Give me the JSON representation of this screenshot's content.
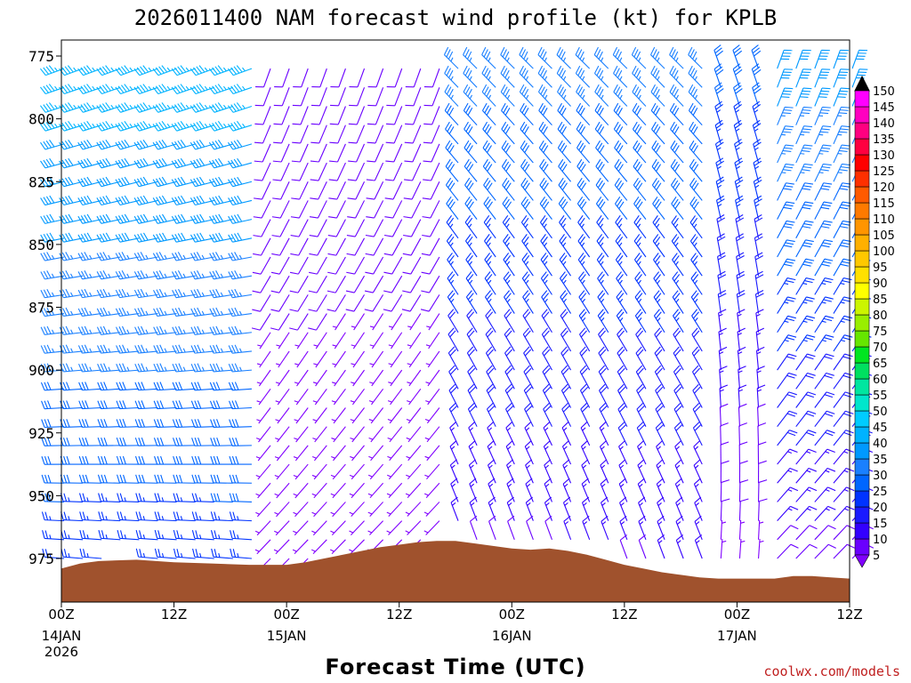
{
  "chart_data": {
    "type": "wind-barb-profile",
    "title": "2026011400 NAM forecast wind profile (kt) for KPLB",
    "xlabel": "Forecast Time (UTC)",
    "ylabel": "",
    "credit": "coolwx.com/models",
    "units": "kt",
    "x_ticks": [
      {
        "hour": 0,
        "label": "00Z",
        "date": "14JAN",
        "year": "2026"
      },
      {
        "hour": 12,
        "label": "12Z",
        "date": "",
        "year": ""
      },
      {
        "hour": 24,
        "label": "00Z",
        "date": "15JAN",
        "year": ""
      },
      {
        "hour": 36,
        "label": "12Z",
        "date": "",
        "year": ""
      },
      {
        "hour": 48,
        "label": "00Z",
        "date": "16JAN",
        "year": ""
      },
      {
        "hour": 60,
        "label": "12Z",
        "date": "",
        "year": ""
      },
      {
        "hour": 72,
        "label": "00Z",
        "date": "17JAN",
        "year": ""
      },
      {
        "hour": 84,
        "label": "12Z",
        "date": "",
        "year": ""
      }
    ],
    "xlim": [
      0,
      84
    ],
    "y_ticks": [
      775,
      800,
      825,
      850,
      875,
      900,
      925,
      950,
      975
    ],
    "ylim_hPa": [
      768,
      984
    ],
    "surface_pressure_hPa": [
      {
        "hour": 0,
        "p": 979
      },
      {
        "hour": 2,
        "p": 977
      },
      {
        "hour": 4,
        "p": 976
      },
      {
        "hour": 8,
        "p": 975.5
      },
      {
        "hour": 12,
        "p": 976.5
      },
      {
        "hour": 16,
        "p": 977
      },
      {
        "hour": 20,
        "p": 977.5
      },
      {
        "hour": 24,
        "p": 977.5
      },
      {
        "hour": 26,
        "p": 976.5
      },
      {
        "hour": 28,
        "p": 975
      },
      {
        "hour": 30,
        "p": 973.5
      },
      {
        "hour": 32,
        "p": 972
      },
      {
        "hour": 34,
        "p": 970.5
      },
      {
        "hour": 36,
        "p": 969.5
      },
      {
        "hour": 38,
        "p": 968.5
      },
      {
        "hour": 40,
        "p": 968
      },
      {
        "hour": 42,
        "p": 968
      },
      {
        "hour": 44,
        "p": 969
      },
      {
        "hour": 46,
        "p": 970
      },
      {
        "hour": 48,
        "p": 971
      },
      {
        "hour": 50,
        "p": 971.5
      },
      {
        "hour": 52,
        "p": 971
      },
      {
        "hour": 54,
        "p": 972
      },
      {
        "hour": 56,
        "p": 973.5
      },
      {
        "hour": 58,
        "p": 975.5
      },
      {
        "hour": 60,
        "p": 977.5
      },
      {
        "hour": 62,
        "p": 979
      },
      {
        "hour": 64,
        "p": 980.5
      },
      {
        "hour": 66,
        "p": 981.5
      },
      {
        "hour": 68,
        "p": 982.5
      },
      {
        "hour": 70,
        "p": 983
      },
      {
        "hour": 72,
        "p": 983
      },
      {
        "hour": 76,
        "p": 983
      },
      {
        "hour": 78,
        "p": 982
      },
      {
        "hour": 80,
        "p": 982
      },
      {
        "hour": 82,
        "p": 982.5
      },
      {
        "hour": 84,
        "p": 983
      }
    ],
    "wind_regimes": [
      {
        "hours": [
          0,
          20
        ],
        "speed_upper_kt": 45,
        "speed_lower_kt": 25,
        "from_dir_deg": 250
      },
      {
        "hours": [
          22,
          40
        ],
        "speed_upper_kt": 10,
        "speed_lower_kt": 5,
        "from_dir_deg": 200
      },
      {
        "hours": [
          40,
          68
        ],
        "speed_upper_kt": 35,
        "speed_lower_kt": 12,
        "from_dir_deg": 315
      },
      {
        "hours": [
          68,
          74
        ],
        "speed_upper_kt": 30,
        "speed_lower_kt": 5,
        "from_dir_deg": 340
      },
      {
        "hours": [
          74,
          84
        ],
        "speed_upper_kt": 40,
        "speed_lower_kt": 10,
        "from_dir_deg": 20
      }
    ],
    "colorbar": {
      "levels": [
        5,
        10,
        15,
        20,
        25,
        30,
        35,
        40,
        45,
        50,
        55,
        60,
        65,
        70,
        75,
        80,
        85,
        90,
        95,
        100,
        105,
        110,
        115,
        120,
        125,
        130,
        135,
        140,
        145,
        150
      ],
      "colors": [
        "#8000ff",
        "#6a00ff",
        "#3300ff",
        "#1a1aff",
        "#0033ff",
        "#0066ff",
        "#1a80ff",
        "#0099ff",
        "#00b3ff",
        "#00ccff",
        "#00e6cc",
        "#00e6a0",
        "#00e060",
        "#00e620",
        "#66e600",
        "#99ee00",
        "#ccf500",
        "#ffff00",
        "#ffe000",
        "#ffc800",
        "#ffb000",
        "#ff9500",
        "#ff7a00",
        "#ff5a00",
        "#ff3000",
        "#ff0000",
        "#ff0040",
        "#ff0080",
        "#ff00c0",
        "#ff00ff"
      ]
    },
    "terrain_color": "#a0522d"
  }
}
